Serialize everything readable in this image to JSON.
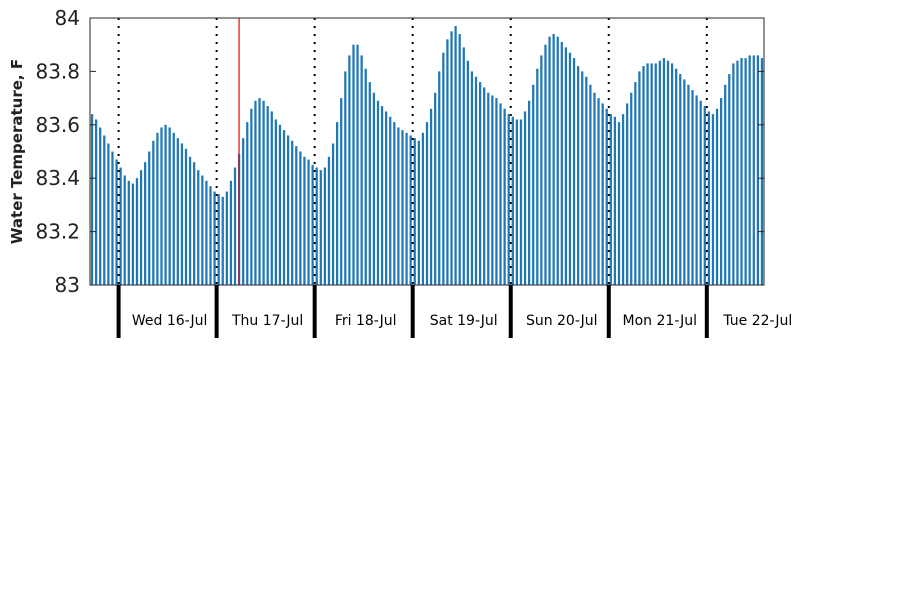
{
  "chart_data": {
    "type": "bar",
    "title": "",
    "xlabel": "",
    "ylabel": "Water Temperature, F",
    "ylim": [
      83,
      84
    ],
    "yticks": [
      "83",
      "83.2",
      "83.4",
      "83.6",
      "83.8",
      "84"
    ],
    "grid": false,
    "bar_color": "#1f77b4",
    "highlight_line_color": "#ff0000",
    "hours_per_day": 24,
    "start_hour_offset": -7,
    "days": [
      "Wed 16-Jul",
      "Thu 17-Jul",
      "Fri 18-Jul",
      "Sat 19-Jul",
      "Sun 20-Jul",
      "Mon 21-Jul",
      "Tue 22-Jul"
    ],
    "current_time_hour_index": 29.5,
    "values": [
      83.64,
      83.62,
      83.59,
      83.56,
      83.53,
      83.5,
      83.47,
      83.44,
      83.41,
      83.39,
      83.38,
      83.4,
      83.43,
      83.46,
      83.5,
      83.54,
      83.57,
      83.59,
      83.6,
      83.59,
      83.57,
      83.55,
      83.53,
      83.51,
      83.48,
      83.46,
      83.43,
      83.41,
      83.39,
      83.37,
      83.35,
      83.34,
      83.33,
      83.35,
      83.39,
      83.44,
      83.49,
      83.55,
      83.61,
      83.66,
      83.69,
      83.7,
      83.69,
      83.67,
      83.65,
      83.62,
      83.6,
      83.58,
      83.56,
      83.54,
      83.52,
      83.5,
      83.48,
      83.47,
      83.45,
      83.44,
      83.43,
      83.44,
      83.48,
      83.53,
      83.61,
      83.7,
      83.8,
      83.86,
      83.9,
      83.9,
      83.86,
      83.81,
      83.76,
      83.72,
      83.69,
      83.67,
      83.65,
      83.63,
      83.61,
      83.59,
      83.58,
      83.57,
      83.56,
      83.55,
      83.54,
      83.57,
      83.61,
      83.66,
      83.72,
      83.8,
      83.87,
      83.92,
      83.95,
      83.97,
      83.94,
      83.89,
      83.84,
      83.8,
      83.78,
      83.76,
      83.74,
      83.72,
      83.71,
      83.7,
      83.68,
      83.66,
      83.64,
      83.63,
      83.62,
      83.62,
      83.65,
      83.69,
      83.75,
      83.81,
      83.86,
      83.9,
      83.93,
      83.94,
      83.93,
      83.91,
      83.89,
      83.87,
      83.85,
      83.82,
      83.8,
      83.78,
      83.75,
      83.72,
      83.7,
      83.68,
      83.66,
      83.64,
      83.63,
      83.61,
      83.64,
      83.68,
      83.72,
      83.76,
      83.8,
      83.82,
      83.83,
      83.83,
      83.83,
      83.84,
      83.85,
      83.84,
      83.83,
      83.81,
      83.79,
      83.77,
      83.75,
      83.73,
      83.71,
      83.69,
      83.67,
      83.65,
      83.64,
      83.66,
      83.7,
      83.75,
      83.79,
      83.83,
      83.84,
      83.85,
      83.85,
      83.86,
      83.86,
      83.86,
      83.85
    ]
  }
}
